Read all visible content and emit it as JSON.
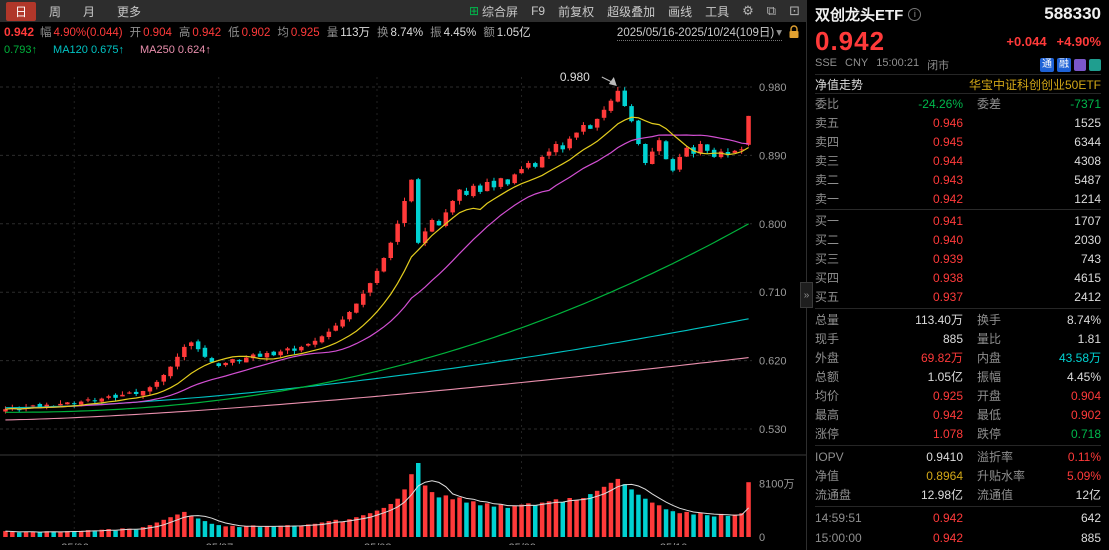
{
  "colors": {
    "up": "#ff3a3a",
    "cyan": "#00d2d2",
    "green": "#00b84c",
    "gold": "#d2a717",
    "plain": "#dcdcdc",
    "gray": "#8f8f8f",
    "maYellow": "#e3cd1e",
    "maMagenta": "#d24fd2",
    "maGreen": "#00b33c",
    "maCyan": "#00c3c3",
    "maPink": "#e98fad"
  },
  "toolbar": {
    "tabs": [
      {
        "label": "日",
        "active": true
      },
      {
        "label": "周",
        "active": false
      },
      {
        "label": "月",
        "active": false
      },
      {
        "label": "更多",
        "active": false
      }
    ],
    "tools": [
      "综合屏",
      "F9",
      "前复权",
      "超级叠加",
      "画线",
      "工具"
    ],
    "icons": [
      {
        "name": "gear-icon",
        "glyph": "⚙"
      },
      {
        "name": "overlay-windows-icon",
        "glyph": "⧉"
      },
      {
        "name": "fullscreen-icon",
        "glyph": "⊡"
      }
    ]
  },
  "infobar": {
    "close": "0.942",
    "fields": [
      {
        "label": "幅",
        "value": "4.90%(0.044)",
        "color": "up"
      },
      {
        "label": "开",
        "value": "0.904",
        "color": "up"
      },
      {
        "label": "高",
        "value": "0.942",
        "color": "up"
      },
      {
        "label": "低",
        "value": "0.902",
        "color": "up"
      },
      {
        "label": "均",
        "value": "0.925",
        "color": "up"
      },
      {
        "label": "量",
        "value": "113万",
        "color": "plain"
      },
      {
        "label": "换",
        "value": "8.74%",
        "color": "plain"
      },
      {
        "label": "振",
        "value": "4.45%",
        "color": "plain"
      },
      {
        "label": "额",
        "value": "1.05亿",
        "color": "plain"
      }
    ],
    "date_range": "2025/05/16-2025/10/24(109日)"
  },
  "ma_legend": [
    {
      "text": "0.793↑",
      "color": "maGreen"
    },
    {
      "text": "MA120 0.675↑",
      "color": "maCyan"
    },
    {
      "text": "MA250 0.624↑",
      "color": "maPink"
    }
  ],
  "chart_data": {
    "type": "candlestick+volume",
    "period_label": "2025/05/16-2025/10/24(109日)",
    "ylim": [
      0.53,
      0.98
    ],
    "y_ticks": [
      "0.980",
      "0.890",
      "0.800",
      "0.710",
      "0.620",
      "0.530"
    ],
    "x_labels": [
      {
        "label": "25/06",
        "day": 10
      },
      {
        "label": "25/07",
        "day": 31
      },
      {
        "label": "25/08",
        "day": 54
      },
      {
        "label": "25/09",
        "day": 75
      },
      {
        "label": "25/10",
        "day": 97
      }
    ],
    "peak": {
      "day": 89,
      "price": 0.98,
      "label": "0.980"
    },
    "last_candle": {
      "o": 0.904,
      "h": 0.942,
      "l": 0.902,
      "c": 0.942
    },
    "closes": [
      0.556,
      0.558,
      0.555,
      0.559,
      0.561,
      0.558,
      0.562,
      0.56,
      0.563,
      0.565,
      0.563,
      0.566,
      0.569,
      0.567,
      0.57,
      0.573,
      0.571,
      0.575,
      0.578,
      0.576,
      0.58,
      0.585,
      0.592,
      0.601,
      0.612,
      0.625,
      0.638,
      0.644,
      0.635,
      0.625,
      0.618,
      0.613,
      0.617,
      0.622,
      0.619,
      0.624,
      0.628,
      0.625,
      0.63,
      0.627,
      0.632,
      0.636,
      0.633,
      0.638,
      0.642,
      0.646,
      0.652,
      0.658,
      0.666,
      0.674,
      0.684,
      0.695,
      0.708,
      0.722,
      0.738,
      0.755,
      0.775,
      0.8,
      0.83,
      0.858,
      0.775,
      0.79,
      0.805,
      0.798,
      0.815,
      0.83,
      0.845,
      0.838,
      0.85,
      0.842,
      0.855,
      0.848,
      0.86,
      0.852,
      0.865,
      0.872,
      0.88,
      0.875,
      0.888,
      0.895,
      0.905,
      0.898,
      0.912,
      0.92,
      0.93,
      0.925,
      0.938,
      0.95,
      0.962,
      0.975,
      0.955,
      0.935,
      0.905,
      0.88,
      0.895,
      0.91,
      0.885,
      0.87,
      0.888,
      0.9,
      0.892,
      0.905,
      0.896,
      0.888,
      0.895,
      0.892,
      0.896,
      0.898,
      0.942
    ],
    "volumes": [
      900,
      750,
      680,
      820,
      760,
      700,
      880,
      810,
      740,
      900,
      850,
      920,
      1050,
      880,
      1100,
      1200,
      950,
      1300,
      1250,
      1100,
      1500,
      1800,
      2200,
      2600,
      3000,
      3400,
      3800,
      3200,
      2800,
      2400,
      2000,
      1800,
      1600,
      1700,
      1500,
      1600,
      1750,
      1500,
      1650,
      1550,
      1700,
      1800,
      1600,
      1750,
      1900,
      2000,
      2200,
      2400,
      2600,
      2300,
      2700,
      3000,
      3300,
      3600,
      4000,
      4400,
      5000,
      5800,
      7200,
      9500,
      11200,
      7800,
      6800,
      6000,
      6300,
      5700,
      6000,
      5200,
      5400,
      4800,
      5100,
      4600,
      4900,
      4400,
      4700,
      4900,
      5100,
      4800,
      5200,
      5400,
      5700,
      5300,
      5900,
      5600,
      5900,
      6500,
      7000,
      7600,
      8200,
      8800,
      8000,
      7200,
      6400,
      5800,
      5200,
      4800,
      4200,
      3900,
      3600,
      3800,
      3400,
      3700,
      3300,
      3100,
      3500,
      3200,
      3400,
      3600,
      8300
    ],
    "vol_scale_max": 11200,
    "vol_tick_value": 8100,
    "vol_ticks": [
      "8100万",
      "0"
    ],
    "ma_windows": {
      "yellow": 10,
      "magenta": 20
    },
    "ma_curves": {
      "green": {
        "start": 0.552,
        "end": 0.8,
        "power": 2.2
      },
      "cyan": {
        "start": 0.558,
        "end": 0.675,
        "power": 1.6
      },
      "pink": {
        "start": 0.542,
        "end": 0.624,
        "power": 1.4
      }
    }
  },
  "panel": {
    "title": "双创龙头ETF",
    "code": "588330",
    "price": "0.942",
    "change": "+0.044",
    "change_pct": "+4.90%",
    "market": "SSE",
    "currency": "CNY",
    "time": "15:00:21",
    "status": "闭市",
    "badges": [
      {
        "label": "通",
        "bg": "#1e62d6"
      },
      {
        "label": "融",
        "bg": "#1e62d6"
      }
    ],
    "icon_badges": [
      {
        "name": "purple-badge-icon",
        "bg": "#7a57c9"
      },
      {
        "name": "teal-badge-icon",
        "bg": "#1f9e8f"
      }
    ],
    "nav_label": "净值走势",
    "fund_name": "华宝中证科创创业50ETF",
    "weibi": {
      "label1": "委比",
      "value1": "-24.26%",
      "label2": "委差",
      "value2": "-7371"
    },
    "asks": [
      {
        "label": "卖五",
        "price": "0.946",
        "qty": "1525"
      },
      {
        "label": "卖四",
        "price": "0.945",
        "qty": "6344"
      },
      {
        "label": "卖三",
        "price": "0.944",
        "qty": "4308"
      },
      {
        "label": "卖二",
        "price": "0.943",
        "qty": "5487"
      },
      {
        "label": "卖一",
        "price": "0.942",
        "qty": "1214"
      }
    ],
    "bids": [
      {
        "label": "买一",
        "price": "0.941",
        "qty": "1707"
      },
      {
        "label": "买二",
        "price": "0.940",
        "qty": "2030"
      },
      {
        "label": "买三",
        "price": "0.939",
        "qty": "743"
      },
      {
        "label": "买四",
        "price": "0.938",
        "qty": "4615"
      },
      {
        "label": "买五",
        "price": "0.937",
        "qty": "2412"
      }
    ],
    "stats1": [
      {
        "l1": "总量",
        "v1": "113.40万",
        "c1": "plain",
        "l2": "换手",
        "v2": "8.74%",
        "c2": "plain"
      },
      {
        "l1": "现手",
        "v1": "885",
        "c1": "plain",
        "l2": "量比",
        "v2": "1.81",
        "c2": "plain"
      },
      {
        "l1": "外盘",
        "v1": "69.82万",
        "c1": "up",
        "l2": "内盘",
        "v2": "43.58万",
        "c2": "cyan"
      },
      {
        "l1": "总额",
        "v1": "1.05亿",
        "c1": "plain",
        "l2": "振幅",
        "v2": "4.45%",
        "c2": "plain"
      },
      {
        "l1": "均价",
        "v1": "0.925",
        "c1": "up",
        "l2": "开盘",
        "v2": "0.904",
        "c2": "up"
      },
      {
        "l1": "最高",
        "v1": "0.942",
        "c1": "up",
        "l2": "最低",
        "v2": "0.902",
        "c2": "up"
      },
      {
        "l1": "涨停",
        "v1": "1.078",
        "c1": "up",
        "l2": "跌停",
        "v2": "0.718",
        "c2": "green"
      }
    ],
    "stats2": [
      {
        "l1": "IOPV",
        "v1": "0.9410",
        "c1": "plain",
        "l2": "溢折率",
        "v2": "0.11%",
        "c2": "up"
      },
      {
        "l1": "净值",
        "v1": "0.8964",
        "c1": "gold",
        "l2": "升贴水率",
        "v2": "5.09%",
        "c2": "up"
      },
      {
        "l1": "流通盘",
        "v1": "12.98亿",
        "c1": "plain",
        "l2": "流通值",
        "v2": "12亿",
        "c2": "plain"
      }
    ],
    "ticks": [
      {
        "time": "14:59:51",
        "price": "0.942",
        "qty": "642"
      },
      {
        "time": "15:00:00",
        "price": "0.942",
        "qty": "885"
      }
    ]
  }
}
